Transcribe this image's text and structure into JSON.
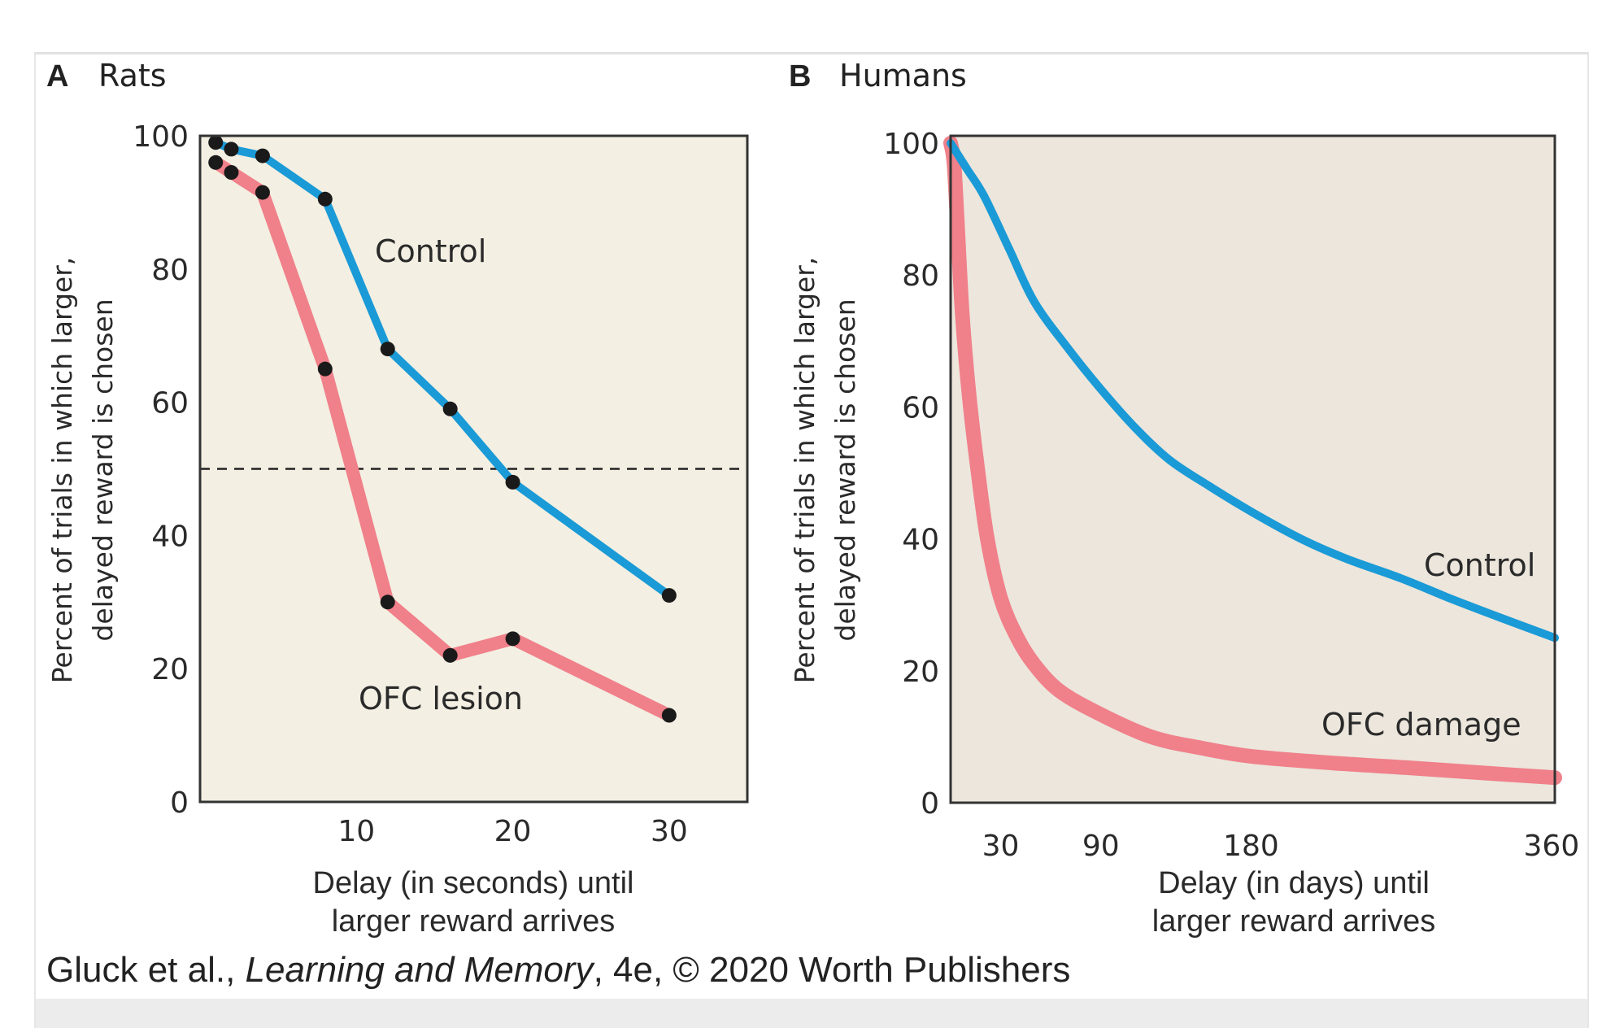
{
  "colors": {
    "control": "#1a9ad6",
    "ofc": "#f0808a",
    "panel_a_bg": "#f3efe2",
    "panel_b_bg": "#ece6dc",
    "marker": "#1a1a1a",
    "axis": "#333333"
  },
  "caption": {
    "authors": "Gluck et al., ",
    "title": "Learning and Memory",
    "rest": ", 4e, © 2020 Worth Publishers"
  },
  "chart_data": [
    {
      "type": "line",
      "panel_letter": "A",
      "title": "Rats",
      "xlabel_line1": "Delay (in seconds) until",
      "xlabel_line2": "larger reward arrives",
      "ylabel_line1": "Percent of trials in which larger,",
      "ylabel_line2": "delayed reward is chosen",
      "xlim": [
        0,
        35
      ],
      "ylim": [
        0,
        100
      ],
      "xticks": [
        10,
        20,
        30
      ],
      "yticks": [
        0,
        20,
        40,
        60,
        80,
        100
      ],
      "grid": false,
      "reference_line": {
        "y": 50,
        "style": "dashed"
      },
      "markers": true,
      "series": [
        {
          "name": "Control",
          "x": [
            1,
            2,
            4,
            8,
            12,
            16,
            20,
            30
          ],
          "y": [
            99,
            98,
            97,
            90.5,
            68,
            59,
            48,
            31
          ]
        },
        {
          "name": "OFC lesion",
          "x": [
            1,
            2,
            4,
            8,
            12,
            16,
            20,
            30
          ],
          "y": [
            96,
            94.5,
            91.5,
            65,
            30,
            22,
            24.5,
            13
          ]
        }
      ]
    },
    {
      "type": "line",
      "panel_letter": "B",
      "title": "Humans",
      "xlabel_line1": "Delay (in days) until",
      "xlabel_line2": "larger reward arrives",
      "ylabel_line1": "Percent of trials in which larger,",
      "ylabel_line2": "delayed reward is chosen",
      "xlim": [
        0,
        362
      ],
      "ylim": [
        0,
        100
      ],
      "xticks": [
        30,
        90,
        180,
        360
      ],
      "yticks": [
        0,
        20,
        40,
        60,
        80,
        100
      ],
      "grid": false,
      "markers": false,
      "series": [
        {
          "name": "Control",
          "x": [
            0,
            10,
            20,
            35,
            50,
            70,
            89,
            110,
            131,
            155,
            181,
            210,
            237,
            270,
            299,
            330,
            362
          ],
          "y": [
            100,
            96,
            92,
            84,
            76,
            69,
            63,
            57,
            52,
            48,
            44,
            40,
            37,
            34,
            31,
            28,
            25
          ]
        },
        {
          "name": "OFC damage",
          "x": [
            0,
            2,
            4,
            7,
            11,
            16,
            22,
            30,
            40,
            50,
            65,
            89,
            120,
            150,
            181,
            230,
            274,
            320,
            362
          ],
          "y": [
            100,
            97,
            88,
            74,
            62,
            51,
            40,
            31,
            25,
            21,
            17,
            13.5,
            10,
            8.3,
            7,
            6,
            5.3,
            4.5,
            3.8
          ]
        }
      ]
    }
  ]
}
